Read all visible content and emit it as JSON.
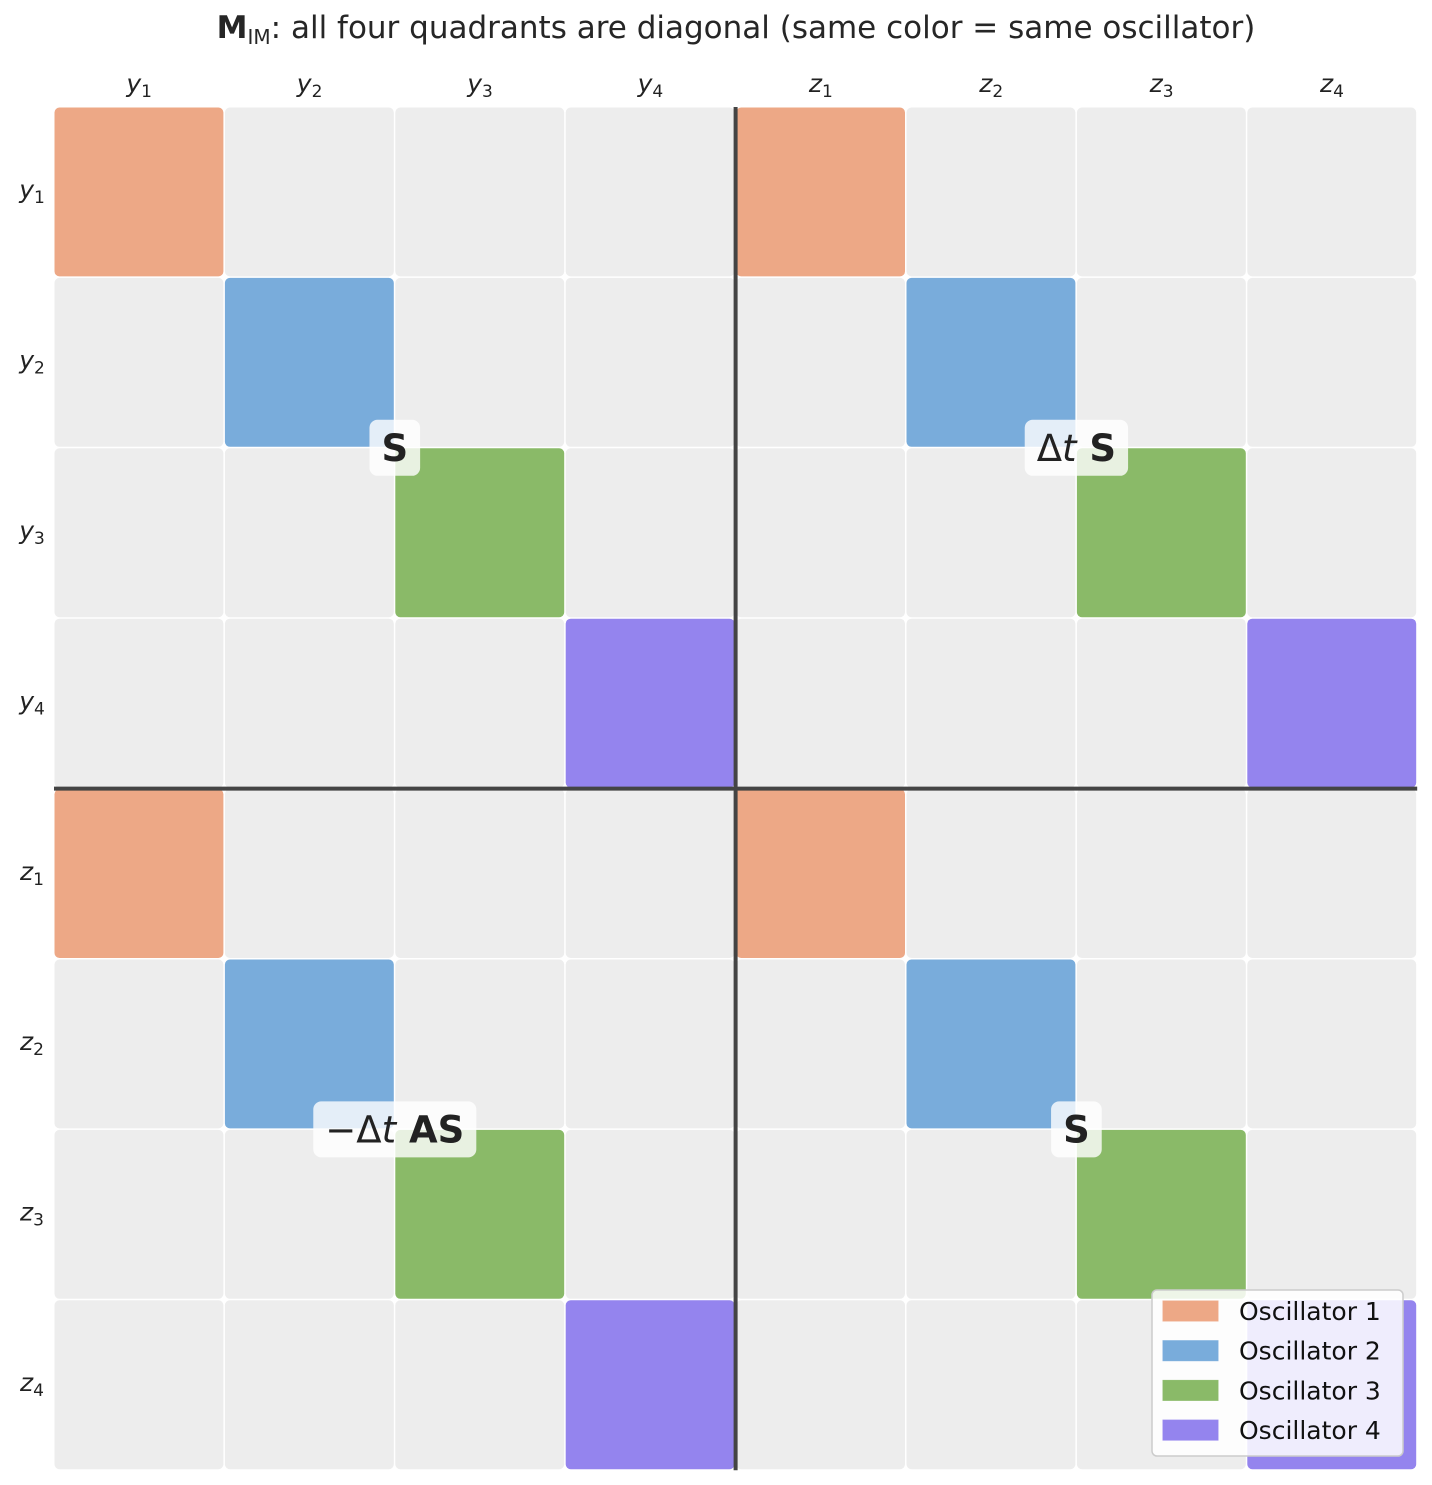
{
  "chart_data": {
    "type": "heatmap",
    "title": {
      "matrix": "M",
      "subscript": "IM",
      "rest": ": all four quadrants are diagonal (same color = same oscillator)"
    },
    "col_labels": [
      [
        "y",
        "1"
      ],
      [
        "y",
        "2"
      ],
      [
        "y",
        "3"
      ],
      [
        "y",
        "4"
      ],
      [
        "z",
        "1"
      ],
      [
        "z",
        "2"
      ],
      [
        "z",
        "3"
      ],
      [
        "z",
        "4"
      ]
    ],
    "row_labels": [
      [
        "y",
        "1"
      ],
      [
        "y",
        "2"
      ],
      [
        "y",
        "3"
      ],
      [
        "y",
        "4"
      ],
      [
        "z",
        "1"
      ],
      [
        "z",
        "2"
      ],
      [
        "z",
        "3"
      ],
      [
        "z",
        "4"
      ]
    ],
    "empty_color": "#ededed",
    "divider_color": "#444444",
    "oscillators": [
      {
        "name": "Oscillator 1",
        "color": "#eda886"
      },
      {
        "name": "Oscillator 2",
        "color": "#79acdb"
      },
      {
        "name": "Oscillator 3",
        "color": "#8aba68"
      },
      {
        "name": "Oscillator 4",
        "color": "#9484ee"
      }
    ],
    "cells": [
      [
        1,
        0,
        0,
        0,
        1,
        0,
        0,
        0
      ],
      [
        0,
        2,
        0,
        0,
        0,
        2,
        0,
        0
      ],
      [
        0,
        0,
        3,
        0,
        0,
        0,
        3,
        0
      ],
      [
        0,
        0,
        0,
        4,
        0,
        0,
        0,
        4
      ],
      [
        1,
        0,
        0,
        0,
        1,
        0,
        0,
        0
      ],
      [
        0,
        2,
        0,
        0,
        0,
        2,
        0,
        0
      ],
      [
        0,
        0,
        3,
        0,
        0,
        0,
        3,
        0
      ],
      [
        0,
        0,
        0,
        4,
        0,
        0,
        0,
        4
      ]
    ],
    "quadrant_labels": [
      {
        "quadrant": "top-left",
        "parts": [
          {
            "t": "S",
            "bold": true
          }
        ]
      },
      {
        "quadrant": "top-right",
        "parts": [
          {
            "t": "Δ",
            "bold": false
          },
          {
            "t": "t",
            "bold": false,
            "italic": true
          },
          {
            "t": " S",
            "bold": true
          }
        ]
      },
      {
        "quadrant": "bottom-left",
        "parts": [
          {
            "t": "−Δ",
            "bold": false
          },
          {
            "t": "t",
            "bold": false,
            "italic": true
          },
          {
            "t": " AS",
            "bold": true
          }
        ]
      },
      {
        "quadrant": "bottom-right",
        "parts": [
          {
            "t": "S",
            "bold": true
          }
        ]
      }
    ],
    "legend_position": "bottom-right"
  }
}
